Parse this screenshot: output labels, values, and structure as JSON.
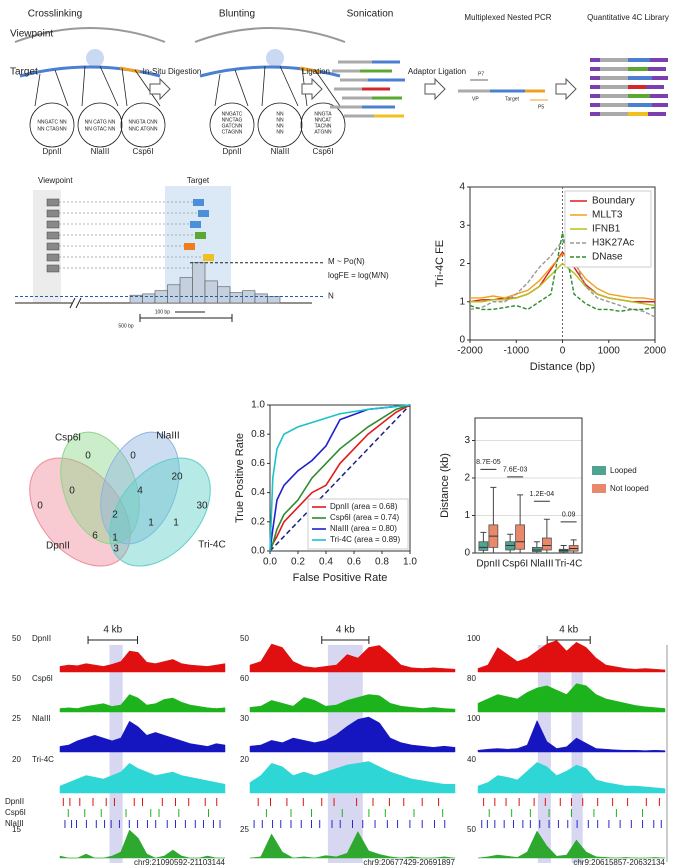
{
  "panel_a": {
    "steps": [
      "Crosslinking",
      "Blunting",
      "Sonication",
      "Multiplexed Nested PCR",
      "Quantitative 4C Library"
    ],
    "viewpoint": "Viewpoint",
    "target": "Target",
    "transitions": [
      "In-Situ Digestion",
      "Ligation",
      "Adaptor Ligation"
    ],
    "digest_sites": [
      {
        "name": "DpnII",
        "color": "#d62728",
        "sequence": [
          "NNGATC NN",
          "NN CTAGNN"
        ]
      },
      {
        "name": "NlaIII",
        "color": "#4a7fd1",
        "sequence": [
          "NN CATG NN",
          "NN GTAC NN"
        ]
      },
      {
        "name": "Csp6I",
        "color": "#5aa832",
        "sequence": [
          "NNGTA CNN",
          "NNC ATGNN"
        ]
      }
    ],
    "blunt_sites": [
      [
        "NNGATC",
        "NNCTAG",
        "GATCNN",
        "CTAGNN"
      ],
      [
        "NN",
        "NN",
        "NN",
        "NN"
      ],
      [
        "NNGTA",
        "NNCAT",
        "TACNN",
        "ATGNN"
      ]
    ],
    "pcr": {
      "primer_forward": "P7",
      "viewpoint": "VP",
      "target": "Target",
      "primer_reverse": "P5"
    }
  },
  "panel_b": {
    "viewpoint": "Viewpoint",
    "target": "Target",
    "formula_m": "M ~ Po(N)",
    "formula_fe": "logFE = log(M/N)",
    "n_label": "N",
    "scale_small": "100 bp",
    "scale_large": "500 bp",
    "counts": [
      1.2,
      1.4,
      1.9,
      2.8,
      3.9,
      6.2,
      3.4,
      2.5,
      1.6,
      1.9,
      1.4,
      1
    ],
    "n_level": 1
  },
  "chart_data": [
    {
      "type": "line",
      "ylabel": "Tri-4C FE",
      "xlabel": "Distance (bp)",
      "x": [
        -2000,
        -1750,
        -1500,
        -1250,
        -1000,
        -750,
        -500,
        -250,
        0,
        250,
        500,
        750,
        1000,
        1250,
        1500,
        1750,
        2000
      ],
      "xlim": [
        -2000,
        2000
      ],
      "xticks": [
        -2000,
        -1000,
        0,
        1000,
        2000
      ],
      "ylim": [
        0,
        4
      ],
      "yticks": [
        0,
        1,
        2,
        3,
        4
      ],
      "vline": 0,
      "legend": "upper right",
      "series": [
        {
          "name": "Boundary",
          "color": "#e31a1c",
          "dash": false,
          "values": [
            1.0,
            1.05,
            1.05,
            1.1,
            1.1,
            1.2,
            1.4,
            1.85,
            2.3,
            1.9,
            1.45,
            1.2,
            1.1,
            1.05,
            1.0,
            1.0,
            1.0
          ]
        },
        {
          "name": "MLLT3",
          "color": "#f0a020",
          "dash": false,
          "values": [
            1.1,
            1.1,
            1.15,
            1.1,
            1.2,
            1.3,
            1.55,
            1.9,
            2.25,
            2.0,
            1.6,
            1.35,
            1.2,
            1.15,
            1.1,
            1.1,
            1.05
          ]
        },
        {
          "name": "IFNB1",
          "color": "#b5c21a",
          "dash": false,
          "values": [
            1.0,
            1.0,
            1.05,
            1.05,
            1.1,
            1.2,
            1.4,
            1.7,
            2.0,
            1.75,
            1.4,
            1.2,
            1.1,
            1.05,
            1.0,
            0.95,
            0.9
          ]
        },
        {
          "name": "H3K27Ac",
          "color": "#999999",
          "dash": true,
          "values": [
            0.8,
            0.85,
            1.0,
            1.0,
            1.2,
            1.5,
            1.9,
            2.2,
            2.6,
            2.1,
            1.4,
            1.1,
            1.0,
            0.9,
            0.8,
            0.75,
            0.6
          ]
        },
        {
          "name": "DNase",
          "color": "#2e8b2e",
          "dash": true,
          "values": [
            0.9,
            0.8,
            0.8,
            0.85,
            0.9,
            0.8,
            1.0,
            1.2,
            2.8,
            1.2,
            0.95,
            0.8,
            0.8,
            0.75,
            0.8,
            0.8,
            0.85
          ]
        }
      ]
    },
    {
      "type": "roc",
      "xlabel": "False Positive Rate",
      "ylabel": "True Positive Rate",
      "diagonal": "#1a237e",
      "legend": "lower right",
      "xlim": [
        0,
        1
      ],
      "ylim": [
        0,
        1
      ],
      "xticks": [
        {
          "value": 0,
          "label": "0.0"
        },
        {
          "value": 0.2,
          "label": "0.2"
        },
        {
          "value": 0.4,
          "label": "0.4"
        },
        {
          "value": 0.6,
          "label": "0.6"
        },
        {
          "value": 0.8,
          "label": "0.8"
        },
        {
          "value": 1,
          "label": "1.0"
        }
      ],
      "yticks": [
        {
          "value": 0,
          "label": "0.0"
        },
        {
          "value": 0.2,
          "label": "0.2"
        },
        {
          "value": 0.4,
          "label": "0.4"
        },
        {
          "value": 0.6,
          "label": "0.6"
        },
        {
          "value": 0.8,
          "label": "0.8"
        },
        {
          "value": 1,
          "label": "1.0"
        }
      ],
      "x": [
        0,
        0.02,
        0.05,
        0.1,
        0.2,
        0.3,
        0.4,
        0.5,
        0.7,
        0.9,
        1
      ],
      "series": [
        {
          "name": "DpnII (area = 0.68)",
          "color": "#e31a1c",
          "values": [
            0,
            0.05,
            0.1,
            0.2,
            0.3,
            0.4,
            0.45,
            0.6,
            0.8,
            0.95,
            1
          ]
        },
        {
          "name": "Csp6I (area = 0.74)",
          "color": "#2e8b2e",
          "values": [
            0,
            0.05,
            0.15,
            0.25,
            0.35,
            0.5,
            0.6,
            0.7,
            0.85,
            0.97,
            1
          ]
        },
        {
          "name": "NlaIII (area = 0.80)",
          "color": "#1f1fcc",
          "values": [
            0,
            0.15,
            0.35,
            0.45,
            0.55,
            0.62,
            0.72,
            0.9,
            0.97,
            0.99,
            1
          ]
        },
        {
          "name": "Tri-4C (area = 0.89)",
          "color": "#19c3c8",
          "values": [
            0,
            0.5,
            0.7,
            0.8,
            0.85,
            0.88,
            0.91,
            0.94,
            0.97,
            0.99,
            1
          ]
        }
      ]
    },
    {
      "type": "box",
      "ylabel": "Distance (kb)",
      "ylim": [
        0,
        3.6
      ],
      "yticks": [
        0,
        1,
        2,
        3
      ],
      "grid": true,
      "legend": "right",
      "categories": [
        "DpnII",
        "Csp6I",
        "NlaIII",
        "Tri-4C"
      ],
      "annotations": [
        "8.7E-05",
        "7.6E-03",
        "1.2E-04",
        "0.09"
      ],
      "series": [
        {
          "name": "Looped",
          "color": "#4fa390",
          "boxes": [
            {
              "min": 0,
              "q1": 0.07,
              "median": 0.15,
              "q3": 0.3,
              "max": 0.55
            },
            {
              "min": 0,
              "q1": 0.08,
              "median": 0.2,
              "q3": 0.3,
              "max": 0.5
            },
            {
              "min": 0,
              "q1": 0.04,
              "median": 0.08,
              "q3": 0.15,
              "max": 0.3
            },
            {
              "min": 0,
              "q1": 0.03,
              "median": 0.07,
              "q3": 0.1,
              "max": 0.2
            }
          ]
        },
        {
          "name": "Not looped",
          "color": "#e8896b",
          "boxes": [
            {
              "min": 0,
              "q1": 0.15,
              "median": 0.45,
              "q3": 0.75,
              "max": 1.75
            },
            {
              "min": 0,
              "q1": 0.1,
              "median": 0.3,
              "q3": 0.75,
              "max": 1.55
            },
            {
              "min": 0,
              "q1": 0.08,
              "median": 0.2,
              "q3": 0.4,
              "max": 0.9
            },
            {
              "min": 0,
              "q1": 0.05,
              "median": 0.12,
              "q3": 0.2,
              "max": 0.35
            }
          ]
        }
      ]
    }
  ],
  "venn": {
    "sets": [
      {
        "name": "DpnII",
        "color": "#f08a9a"
      },
      {
        "name": "Csp6I",
        "color": "#8fd68a"
      },
      {
        "name": "NlaIII",
        "color": "#8fb4e3"
      },
      {
        "name": "Tri-4C",
        "color": "#5fcfc8"
      }
    ],
    "regions": [
      0,
      0,
      20,
      0,
      4,
      0,
      30,
      2,
      1,
      1,
      6,
      1,
      3
    ]
  },
  "tracks": {
    "track_names": [
      "DpnII",
      "Csp6I",
      "NlaIII",
      "Tri-4C"
    ],
    "track_colors": [
      "#e01010",
      "#1db31d",
      "#1616c0",
      "#2fd6d6",
      "#2ea82e"
    ],
    "site_names": [
      "DpnII",
      "Csp6I",
      "NlaIII"
    ],
    "site_colors": [
      "#e01010",
      "#1db31d",
      "#2a2ac8"
    ],
    "scale_label": "4 kb",
    "regions": [
      {
        "label": "chr9:21090592-21103144",
        "tracks": [
          {
            "max": 50,
            "values": [
              8,
              10,
              9,
              12,
              10,
              8,
              11,
              15,
              30,
              28,
              14,
              12,
              15,
              18,
              12,
              10,
              9,
              8,
              10,
              12
            ]
          },
          {
            "max": 50,
            "values": [
              5,
              6,
              5,
              8,
              10,
              12,
              8,
              10,
              25,
              20,
              10,
              12,
              18,
              20,
              14,
              10,
              8,
              6,
              5,
              6
            ]
          },
          {
            "max": 25,
            "values": [
              4,
              5,
              8,
              10,
              12,
              10,
              8,
              10,
              22,
              18,
              12,
              14,
              12,
              10,
              8,
              6,
              5,
              4,
              6,
              5
            ]
          },
          {
            "max": 20,
            "values": [
              4,
              6,
              8,
              10,
              9,
              8,
              10,
              12,
              17,
              14,
              12,
              10,
              11,
              12,
              10,
              9,
              8,
              7,
              6,
              5
            ]
          },
          {
            "max": 15,
            "values": [
              1,
              0,
              0,
              2,
              0,
              0,
              1,
              3,
              14,
              10,
              2,
              0,
              1,
              4,
              1,
              0,
              0,
              1,
              0,
              0
            ]
          }
        ],
        "sites": [
          [
            0.02,
            0.06,
            0.12,
            0.2,
            0.28,
            0.33,
            0.45,
            0.5,
            0.62,
            0.7,
            0.78,
            0.88,
            0.95
          ],
          [
            0.05,
            0.15,
            0.25,
            0.4,
            0.55,
            0.6,
            0.72,
            0.9
          ],
          [
            0.03,
            0.07,
            0.1,
            0.16,
            0.22,
            0.27,
            0.31,
            0.36,
            0.42,
            0.47,
            0.53,
            0.58,
            0.65,
            0.7,
            0.76,
            0.82,
            0.87,
            0.93,
            0.97
          ]
        ]
      },
      {
        "label": "chr9:20677429-20691897",
        "tracks": [
          {
            "max": 50,
            "values": [
              10,
              15,
              40,
              35,
              15,
              8,
              6,
              8,
              10,
              25,
              20,
              35,
              38,
              25,
              10,
              6,
              5,
              6,
              5,
              4
            ]
          },
          {
            "max": 60,
            "values": [
              8,
              10,
              20,
              15,
              10,
              25,
              20,
              10,
              12,
              20,
              25,
              30,
              28,
              15,
              10,
              8,
              6,
              8,
              6,
              5
            ]
          },
          {
            "max": 30,
            "values": [
              5,
              6,
              10,
              8,
              12,
              10,
              8,
              10,
              15,
              22,
              28,
              30,
              25,
              12,
              8,
              6,
              5,
              4,
              5,
              4
            ]
          },
          {
            "max": 20,
            "values": [
              6,
              10,
              17,
              15,
              10,
              12,
              10,
              12,
              14,
              16,
              17,
              18,
              15,
              12,
              10,
              8,
              7,
              6,
              5,
              5
            ]
          },
          {
            "max": 25,
            "values": [
              0,
              1,
              20,
              5,
              0,
              1,
              0,
              2,
              1,
              4,
              22,
              6,
              3,
              1,
              0,
              1,
              0,
              0,
              1,
              0
            ]
          }
        ],
        "sites": [
          [
            0.04,
            0.1,
            0.18,
            0.26,
            0.35,
            0.41,
            0.52,
            0.6,
            0.68,
            0.75,
            0.84,
            0.92
          ],
          [
            0.08,
            0.2,
            0.3,
            0.45,
            0.58,
            0.66,
            0.8,
            0.94
          ],
          [
            0.02,
            0.06,
            0.11,
            0.15,
            0.2,
            0.25,
            0.3,
            0.34,
            0.4,
            0.44,
            0.5,
            0.55,
            0.61,
            0.67,
            0.72,
            0.78,
            0.84,
            0.9,
            0.95
          ]
        ]
      },
      {
        "label": "chr9:20615857-20632134",
        "tracks": [
          {
            "max": 100,
            "values": [
              10,
              20,
              70,
              50,
              30,
              40,
              60,
              80,
              90,
              60,
              85,
              70,
              40,
              20,
              15,
              10,
              8,
              10,
              8,
              6
            ]
          },
          {
            "max": 80,
            "values": [
              20,
              30,
              40,
              35,
              30,
              45,
              55,
              60,
              50,
              40,
              65,
              60,
              40,
              30,
              25,
              20,
              15,
              12,
              10,
              8
            ]
          },
          {
            "max": 100,
            "values": [
              5,
              8,
              10,
              8,
              10,
              20,
              90,
              30,
              10,
              15,
              40,
              25,
              10,
              8,
              6,
              5,
              5,
              4,
              5,
              4
            ]
          },
          {
            "max": 40,
            "values": [
              8,
              12,
              20,
              18,
              15,
              25,
              35,
              30,
              20,
              25,
              32,
              28,
              15,
              12,
              10,
              8,
              8,
              7,
              6,
              5
            ]
          },
          {
            "max": 50,
            "values": [
              0,
              2,
              5,
              3,
              1,
              10,
              45,
              20,
              3,
              5,
              30,
              10,
              2,
              1,
              0,
              1,
              0,
              0,
              1,
              0
            ]
          }
        ],
        "sites": [
          [
            0.03,
            0.09,
            0.15,
            0.22,
            0.3,
            0.36,
            0.44,
            0.5,
            0.56,
            0.64,
            0.72,
            0.8,
            0.9,
            0.97
          ],
          [
            0.06,
            0.18,
            0.28,
            0.38,
            0.5,
            0.62,
            0.74,
            0.88
          ],
          [
            0.02,
            0.05,
            0.09,
            0.14,
            0.19,
            0.24,
            0.28,
            0.33,
            0.38,
            0.43,
            0.48,
            0.53,
            0.59,
            0.64,
            0.7,
            0.76,
            0.82,
            0.88,
            0.94,
            0.98
          ]
        ]
      }
    ]
  }
}
